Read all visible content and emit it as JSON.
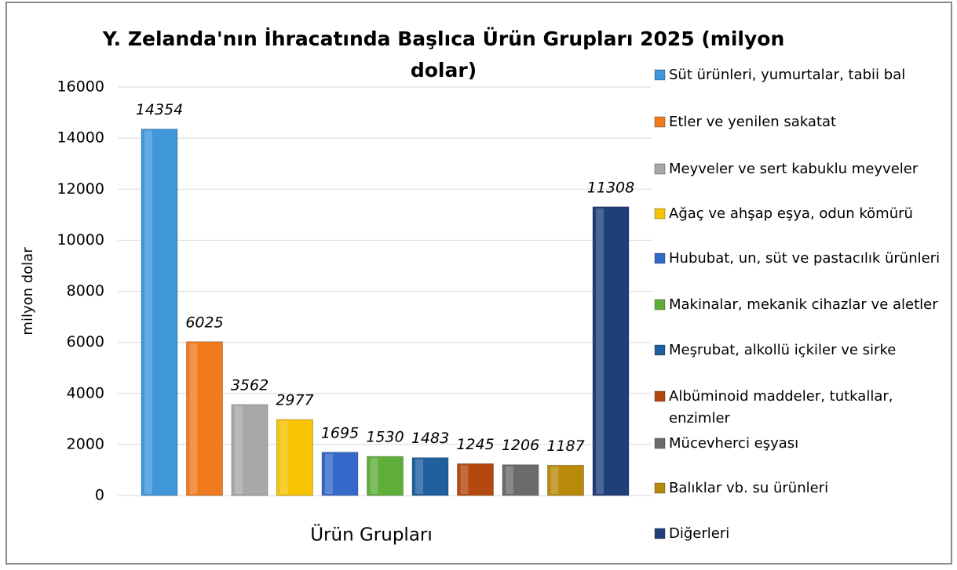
{
  "chart_data": {
    "type": "bar",
    "title": "Y. Zelanda'nın İhracatında Başlıca Ürün Grupları 2025 (milyon dolar)",
    "x_label": "Ürün Grupları",
    "y_label": "milyon dolar",
    "categories": [
      "Ürün Grupları"
    ],
    "series": [
      {
        "name": "Süt ürünleri, yumurtalar, tabii bal",
        "color": "#3f97da",
        "values": [
          14354
        ]
      },
      {
        "name": "Etler ve yenilen sakatat",
        "color": "#f07a1c",
        "values": [
          6025
        ]
      },
      {
        "name": "Meyveler ve sert kabuklu meyveler",
        "color": "#a8a8a8",
        "values": [
          3562
        ]
      },
      {
        "name": "Ağaç ve ahşap eşya, odun kömürü",
        "color": "#f6c400",
        "values": [
          2977
        ]
      },
      {
        "name": "Hububat, un, süt ve pastacılık ürünleri",
        "color": "#3569c9",
        "values": [
          1695
        ]
      },
      {
        "name": "Makinalar, mekanik cihazlar ve aletler",
        "color": "#5fae3a",
        "values": [
          1530
        ]
      },
      {
        "name": "Meşrubat, alkollü içkiler ve sirke",
        "color": "#1f609f",
        "values": [
          1483
        ]
      },
      {
        "name": "Albüminoid maddeler, tutkallar, enzimler",
        "color": "#b4480f",
        "values": [
          1245
        ]
      },
      {
        "name": "Mücevherci eşyası",
        "color": "#6b6b6b",
        "values": [
          1206
        ]
      },
      {
        "name": "Balıklar vb. su ürünleri",
        "color": "#b98a0a",
        "values": [
          1187
        ]
      },
      {
        "name": "Diğerleri",
        "color": "#1f3f7a",
        "values": [
          11308
        ]
      }
    ],
    "ylim": [
      0,
      16000
    ],
    "yticks": [
      0,
      2000,
      4000,
      6000,
      8000,
      10000,
      12000,
      14000,
      16000
    ],
    "grid": true,
    "legend": "right"
  }
}
